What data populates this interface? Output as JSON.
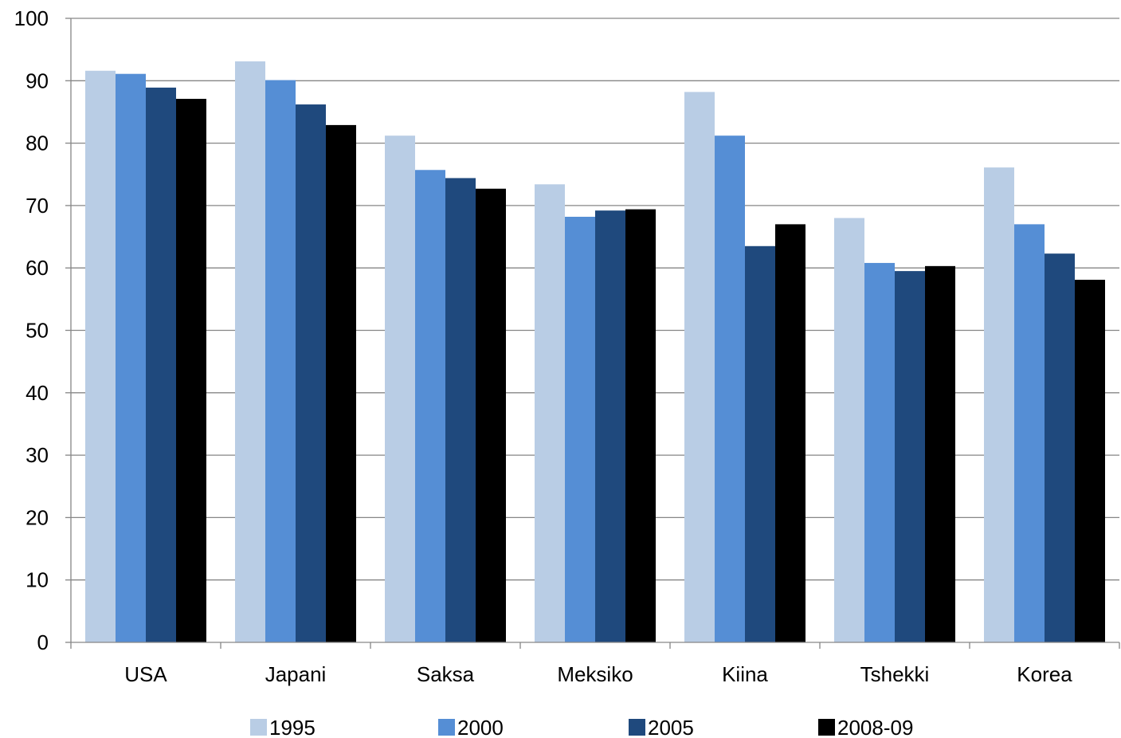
{
  "chart_data": {
    "type": "bar",
    "title": "",
    "xlabel": "",
    "ylabel": "",
    "ylim": [
      0,
      100
    ],
    "yticks": [
      0,
      10,
      20,
      30,
      40,
      50,
      60,
      70,
      80,
      90,
      100
    ],
    "grid": true,
    "legend_position": "bottom",
    "categories": [
      "USA",
      "Japani",
      "Saksa",
      "Meksiko",
      "Kiina",
      "Tshekki",
      "Korea"
    ],
    "series": [
      {
        "name": "1995",
        "color": "#b9cde5",
        "values": [
          91.6,
          93.1,
          81.2,
          73.4,
          88.2,
          68.0,
          76.1
        ]
      },
      {
        "name": "2000",
        "color": "#558ed5",
        "values": [
          91.1,
          90.1,
          75.7,
          68.2,
          81.2,
          60.8,
          67.0
        ]
      },
      {
        "name": "2005",
        "color": "#1f497d",
        "values": [
          88.9,
          86.2,
          74.4,
          69.2,
          63.5,
          59.5,
          62.3
        ]
      },
      {
        "name": "2008-09",
        "color": "#000000",
        "values": [
          87.1,
          82.9,
          72.7,
          69.4,
          67.0,
          60.3,
          58.1
        ]
      }
    ]
  }
}
